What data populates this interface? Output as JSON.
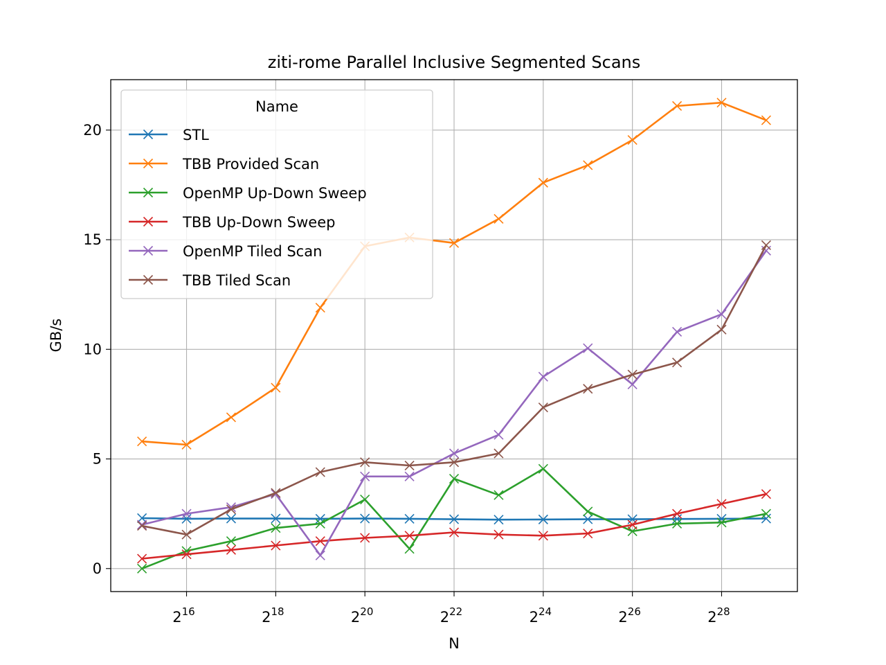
{
  "chart_data": {
    "type": "line",
    "title": "ziti-rome Parallel Inclusive Segmented Scans",
    "xlabel": "N",
    "ylabel": "GB/s",
    "x_scale": "log2",
    "x_exponents": [
      15,
      16,
      17,
      18,
      19,
      20,
      21,
      22,
      23,
      24,
      25,
      26,
      27,
      28,
      29
    ],
    "x_tick_exponents": [
      16,
      18,
      20,
      22,
      24,
      26,
      28
    ],
    "x_tick_base": "2",
    "xlim_exponents": [
      14.3,
      29.7
    ],
    "ylim": [
      -1.05,
      22.3
    ],
    "y_ticks": [
      0,
      5,
      10,
      15,
      20
    ],
    "grid": true,
    "marker": "x",
    "legend": {
      "title": "Name",
      "placement": "upper-left"
    },
    "series": [
      {
        "name": "STL",
        "color": "#1f77b4",
        "values": [
          2.3,
          2.27,
          2.28,
          2.28,
          2.27,
          2.28,
          2.27,
          2.25,
          2.23,
          2.24,
          2.25,
          2.25,
          2.26,
          2.27,
          2.28
        ]
      },
      {
        "name": "TBB Provided Scan",
        "color": "#ff7f0e",
        "values": [
          5.8,
          5.65,
          6.9,
          8.25,
          11.9,
          14.7,
          15.1,
          14.85,
          15.95,
          17.6,
          18.4,
          19.55,
          21.1,
          21.25,
          20.45
        ]
      },
      {
        "name": "OpenMP Up-Down Sweep",
        "color": "#2ca02c",
        "values": [
          0.0,
          0.8,
          1.25,
          1.85,
          2.05,
          3.15,
          0.9,
          4.1,
          3.35,
          4.55,
          2.6,
          1.7,
          2.05,
          2.1,
          2.5
        ]
      },
      {
        "name": "TBB Up-Down Sweep",
        "color": "#d62728",
        "values": [
          0.45,
          0.65,
          0.85,
          1.05,
          1.25,
          1.4,
          1.5,
          1.65,
          1.55,
          1.5,
          1.6,
          2.0,
          2.5,
          2.95,
          3.4
        ]
      },
      {
        "name": "OpenMP Tiled Scan",
        "color": "#9467bd",
        "values": [
          2.0,
          2.5,
          2.8,
          3.4,
          0.6,
          4.2,
          4.2,
          5.25,
          6.1,
          8.75,
          10.05,
          8.4,
          10.8,
          11.6,
          14.5
        ]
      },
      {
        "name": "TBB Tiled Scan",
        "color": "#8c564b",
        "values": [
          1.95,
          1.55,
          2.7,
          3.45,
          4.4,
          4.85,
          4.7,
          4.85,
          5.25,
          7.35,
          8.2,
          8.85,
          9.4,
          10.9,
          14.75
        ]
      }
    ]
  }
}
